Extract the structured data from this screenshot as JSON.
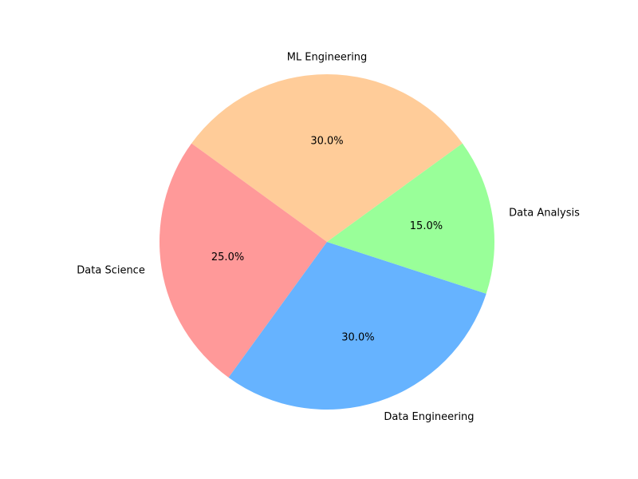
{
  "chart_data": {
    "type": "pie",
    "title": "",
    "slices": [
      {
        "label": "ML Engineering",
        "value": 30.0,
        "pct_label": "30.0%",
        "color": "#ffcc99"
      },
      {
        "label": "Data Science",
        "value": 25.0,
        "pct_label": "25.0%",
        "color": "#ff9999"
      },
      {
        "label": "Data Engineering",
        "value": 30.0,
        "pct_label": "30.0%",
        "color": "#66b3ff"
      },
      {
        "label": "Data Analysis",
        "value": 15.0,
        "pct_label": "15.0%",
        "color": "#99ff99"
      }
    ],
    "start_angle_deg": 36,
    "direction": "counterclockwise",
    "legend": "none"
  }
}
